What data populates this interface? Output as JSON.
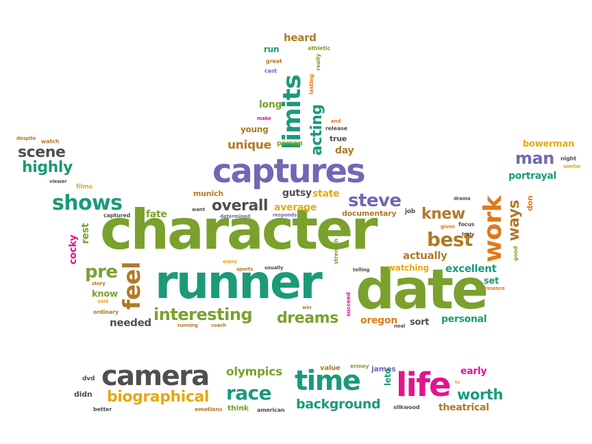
{
  "palette": {
    "green": "#7aa12e",
    "teal": "#1b9a7a",
    "purple": "#7068b4",
    "gray": "#4f4f4f",
    "orange": "#e07a1a",
    "gold": "#e8a712",
    "brown": "#b07a27",
    "magenta": "#e0158e"
  },
  "words": {
    "character": "character",
    "runner": "runner",
    "date": "date",
    "captures": "captures",
    "camera": "camera",
    "life": "life",
    "time": "time",
    "limits": "limits",
    "work": "work",
    "shows": "shows",
    "interesting": "interesting",
    "dreams": "dreams",
    "steve": "steve",
    "race": "race",
    "feel": "feel",
    "best": "best",
    "biographical": "biographical",
    "background": "background",
    "worth": "worth",
    "scene": "scene",
    "highly": "highly",
    "overall": "overall",
    "man": "man",
    "knew": "knew",
    "acting": "acting",
    "ways": "ways",
    "pre": "pre",
    "unique": "unique",
    "olympics": "olympics",
    "excellent": "excellent",
    "actually": "actually",
    "portrayal": "portrayal",
    "personal": "personal",
    "oregon": "oregon",
    "bowerman": "bowerman",
    "theatrical": "theatrical",
    "early": "early",
    "state": "state",
    "gutsy": "gutsy",
    "average": "average",
    "documentary": "documentary",
    "heard": "heard",
    "long": "long",
    "young": "young",
    "day": "day",
    "true": "true",
    "run": "run",
    "fate": "fate",
    "munich": "munich",
    "know": "know",
    "needed": "needed",
    "watching": "watching",
    "set": "set",
    "sort": "sort",
    "james": "james",
    "leto": "leto",
    "value": "value",
    "think": "think",
    "person": "person",
    "cocky": "cocky",
    "rest": "rest",
    "films": "films",
    "watch": "watch",
    "despite": "despite",
    "viewer": "viewer",
    "captured": "captured",
    "want": "want",
    "determined": "determined",
    "responds": "responds",
    "job": "job",
    "drama": "drama",
    "given": "given",
    "focus": "focus",
    "truly": "truly",
    "good": "good",
    "don": "don",
    "night": "night",
    "similar": "similar",
    "essence": "essence",
    "athletic": "athletic",
    "great": "great",
    "cast": "cast",
    "really": "really",
    "lasting": "lasting",
    "make": "make",
    "end": "end",
    "release": "release",
    "enjoy": "enjoy",
    "sports": "sports",
    "usually": "usually",
    "telling": "telling",
    "strength": "strength",
    "succeed": "succeed",
    "win": "win",
    "neal": "neal",
    "running": "running",
    "coach": "coach",
    "story": "story",
    "said": "said",
    "ordinary": "ordinary",
    "dvd": "dvd",
    "didn": "didn",
    "better": "better",
    "emotions": "emotions",
    "american": "american",
    "ermey": "ermey",
    "silkwood": "silkwood",
    "tv": "tv"
  }
}
